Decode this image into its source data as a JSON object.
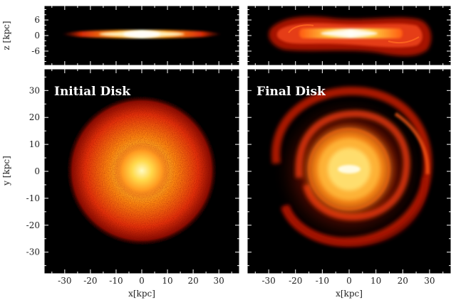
{
  "figure": {
    "panels": [
      {
        "id": "top-left",
        "view": "edge-on",
        "title": ""
      },
      {
        "id": "top-right",
        "view": "edge-on",
        "title": ""
      },
      {
        "id": "bottom-left",
        "view": "face-on",
        "title": "Initial Disk"
      },
      {
        "id": "bottom-right",
        "view": "face-on",
        "title": "Final Disk"
      }
    ],
    "axes": {
      "x_label": "x[kpc]",
      "y_label": "y [kpc]",
      "z_label": "z [kpc]",
      "x_ticks": [
        "-30",
        "-20",
        "-10",
        "0",
        "10",
        "20",
        "30"
      ],
      "y_ticks": [
        "30",
        "20",
        "10",
        "0",
        "-10",
        "-20",
        "-30"
      ],
      "z_ticks": [
        "6",
        "0",
        "-6"
      ]
    },
    "colors": {
      "background": "#000000",
      "core": "#fff7a0",
      "mid": "#ff9a10",
      "outer": "#d21a05",
      "frame": "#ffffff"
    }
  }
}
